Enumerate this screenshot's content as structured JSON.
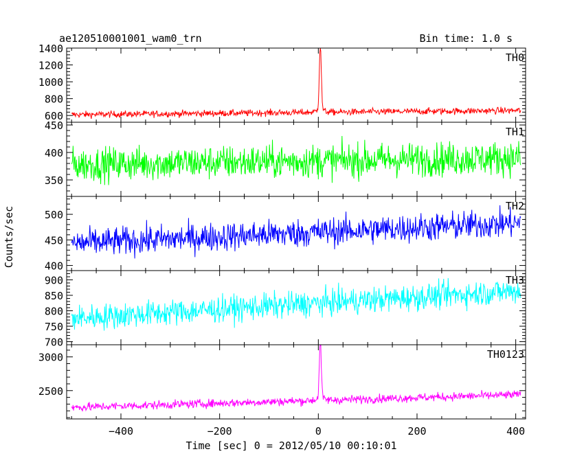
{
  "header": {
    "title": "ae120510001001_wam0_trn",
    "bin_time": "Bin time: 1.0 s"
  },
  "chart_data": {
    "type": "line",
    "title": "ae120510001001_wam0_trn",
    "xlabel": "Time [sec] 0 = 2012/05/10 00:10:01",
    "ylabel": "Counts/sec",
    "xlim": [
      -510,
      420
    ],
    "x_ticks": [
      -400,
      -200,
      0,
      200,
      400
    ],
    "grid": false,
    "panels": [
      {
        "name": "TH0",
        "color": "#ff0000",
        "ylim": [
          520,
          1400
        ],
        "y_ticks": [
          600,
          800,
          1000,
          1200,
          1400
        ],
        "baseline_start": 610,
        "baseline_end": 660,
        "noise": 28,
        "peak": {
          "x": 4,
          "y": 1400
        }
      },
      {
        "name": "TH1",
        "color": "#00ff00",
        "ylim": [
          320,
          455
        ],
        "y_ticks": [
          350,
          400,
          450
        ],
        "baseline_start": 378,
        "baseline_end": 390,
        "noise": 22,
        "peak": null
      },
      {
        "name": "TH2",
        "color": "#0000ff",
        "ylim": [
          390,
          535
        ],
        "y_ticks": [
          400,
          450,
          500
        ],
        "baseline_start": 443,
        "baseline_end": 483,
        "noise": 20,
        "peak": null
      },
      {
        "name": "TH3",
        "color": "#00ffff",
        "ylim": [
          690,
          930
        ],
        "y_ticks": [
          700,
          750,
          800,
          850,
          900
        ],
        "baseline_start": 775,
        "baseline_end": 865,
        "noise": 30,
        "peak": null
      },
      {
        "name": "TH0123",
        "color": "#ff00ff",
        "ylim": [
          2080,
          3180
        ],
        "y_ticks": [
          2500,
          3000
        ],
        "baseline_start": 2250,
        "baseline_end": 2440,
        "noise": 45,
        "peak": {
          "x": 4,
          "y": 3180
        }
      }
    ]
  }
}
